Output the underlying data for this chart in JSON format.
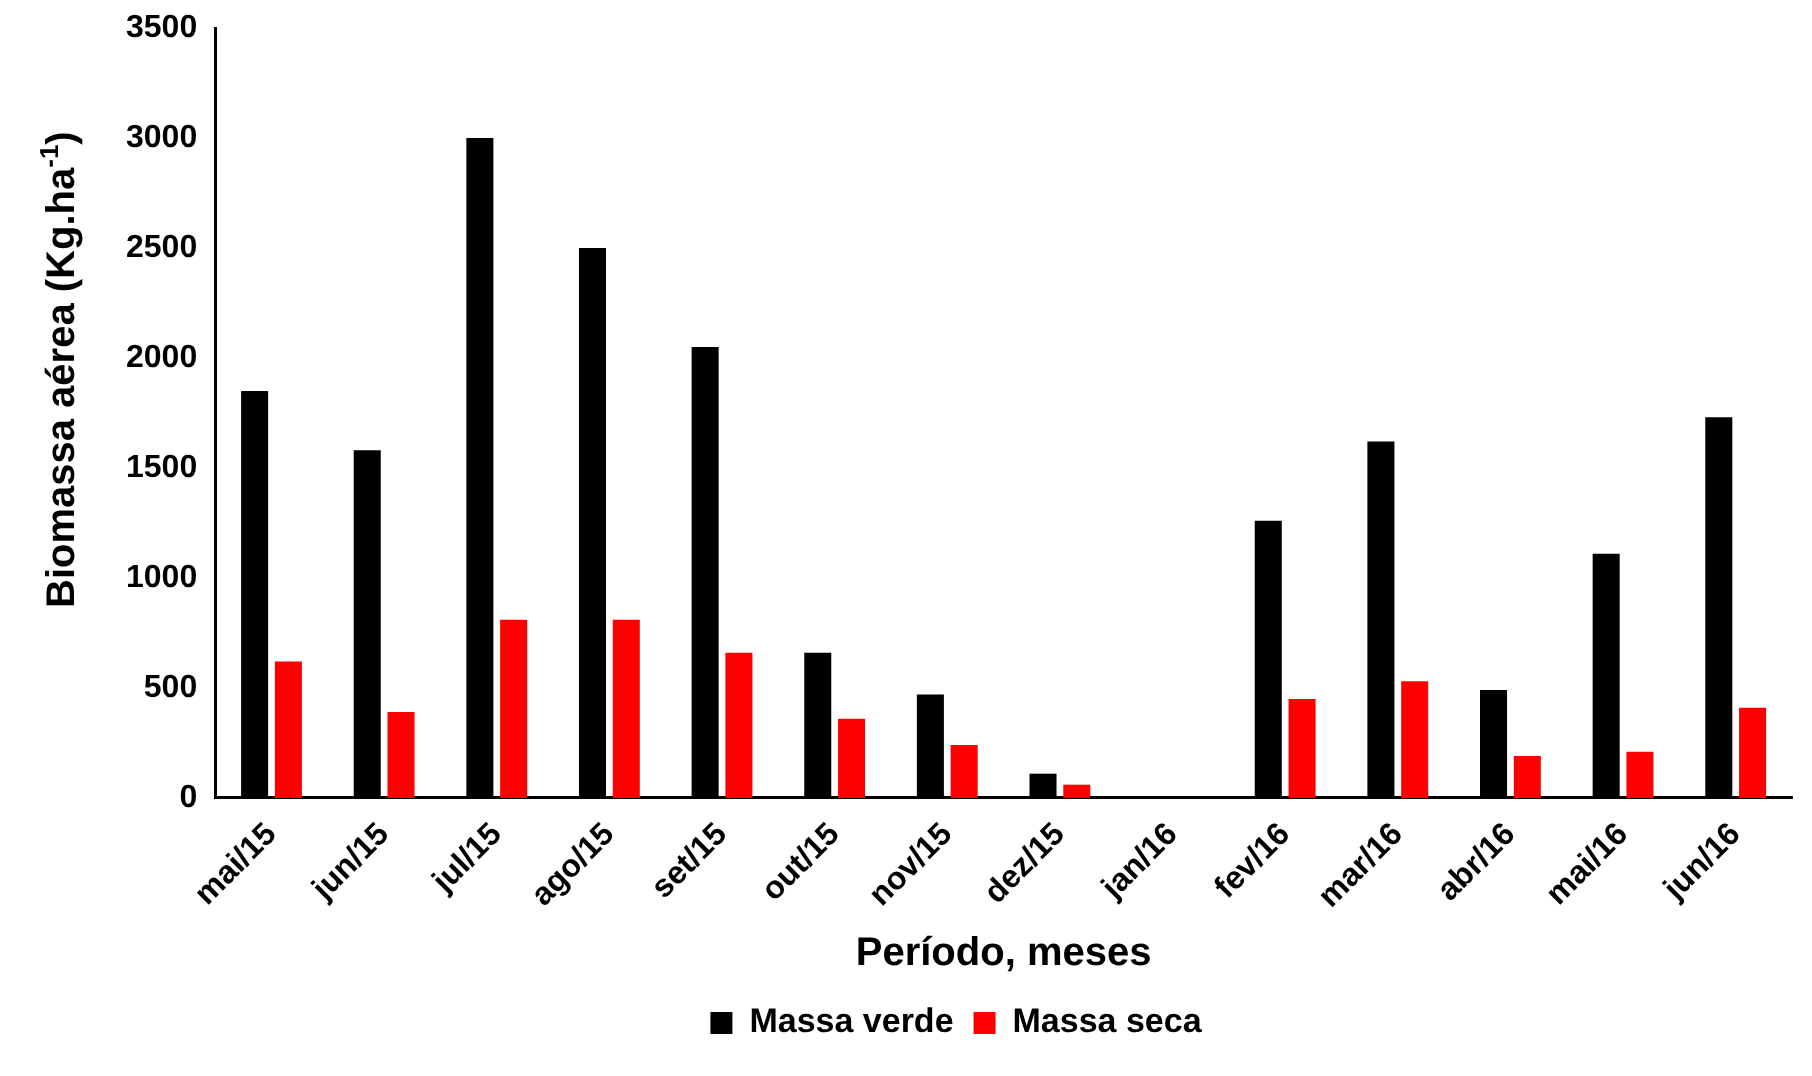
{
  "chart_data": {
    "type": "bar",
    "xlabel": "Período, meses",
    "ylabel": "Biomassa aérea (Kg.ha$^{-1}$)",
    "categories": [
      "mai/15",
      "jun/15",
      "jul/15",
      "ago/15",
      "set/15",
      "out/15",
      "nov/15",
      "dez/15",
      "jan/16",
      "fev/16",
      "mar/16",
      "abr/16",
      "mai/16",
      "jun/16"
    ],
    "series": [
      {
        "name": "Massa verde",
        "color": "#000000",
        "values": [
          1850,
          1580,
          3000,
          2500,
          2050,
          660,
          470,
          110,
          0,
          1260,
          1620,
          490,
          1110,
          1730
        ]
      },
      {
        "name": "Massa seca",
        "color": "#ff0000",
        "values": [
          620,
          390,
          810,
          810,
          660,
          360,
          240,
          60,
          0,
          450,
          530,
          190,
          210,
          410
        ]
      }
    ],
    "ylim": [
      0,
      3500
    ],
    "yticks": [
      0,
      500,
      1000,
      1500,
      2000,
      2500,
      3000,
      3500
    ],
    "grid": false,
    "legend": "bottom"
  }
}
